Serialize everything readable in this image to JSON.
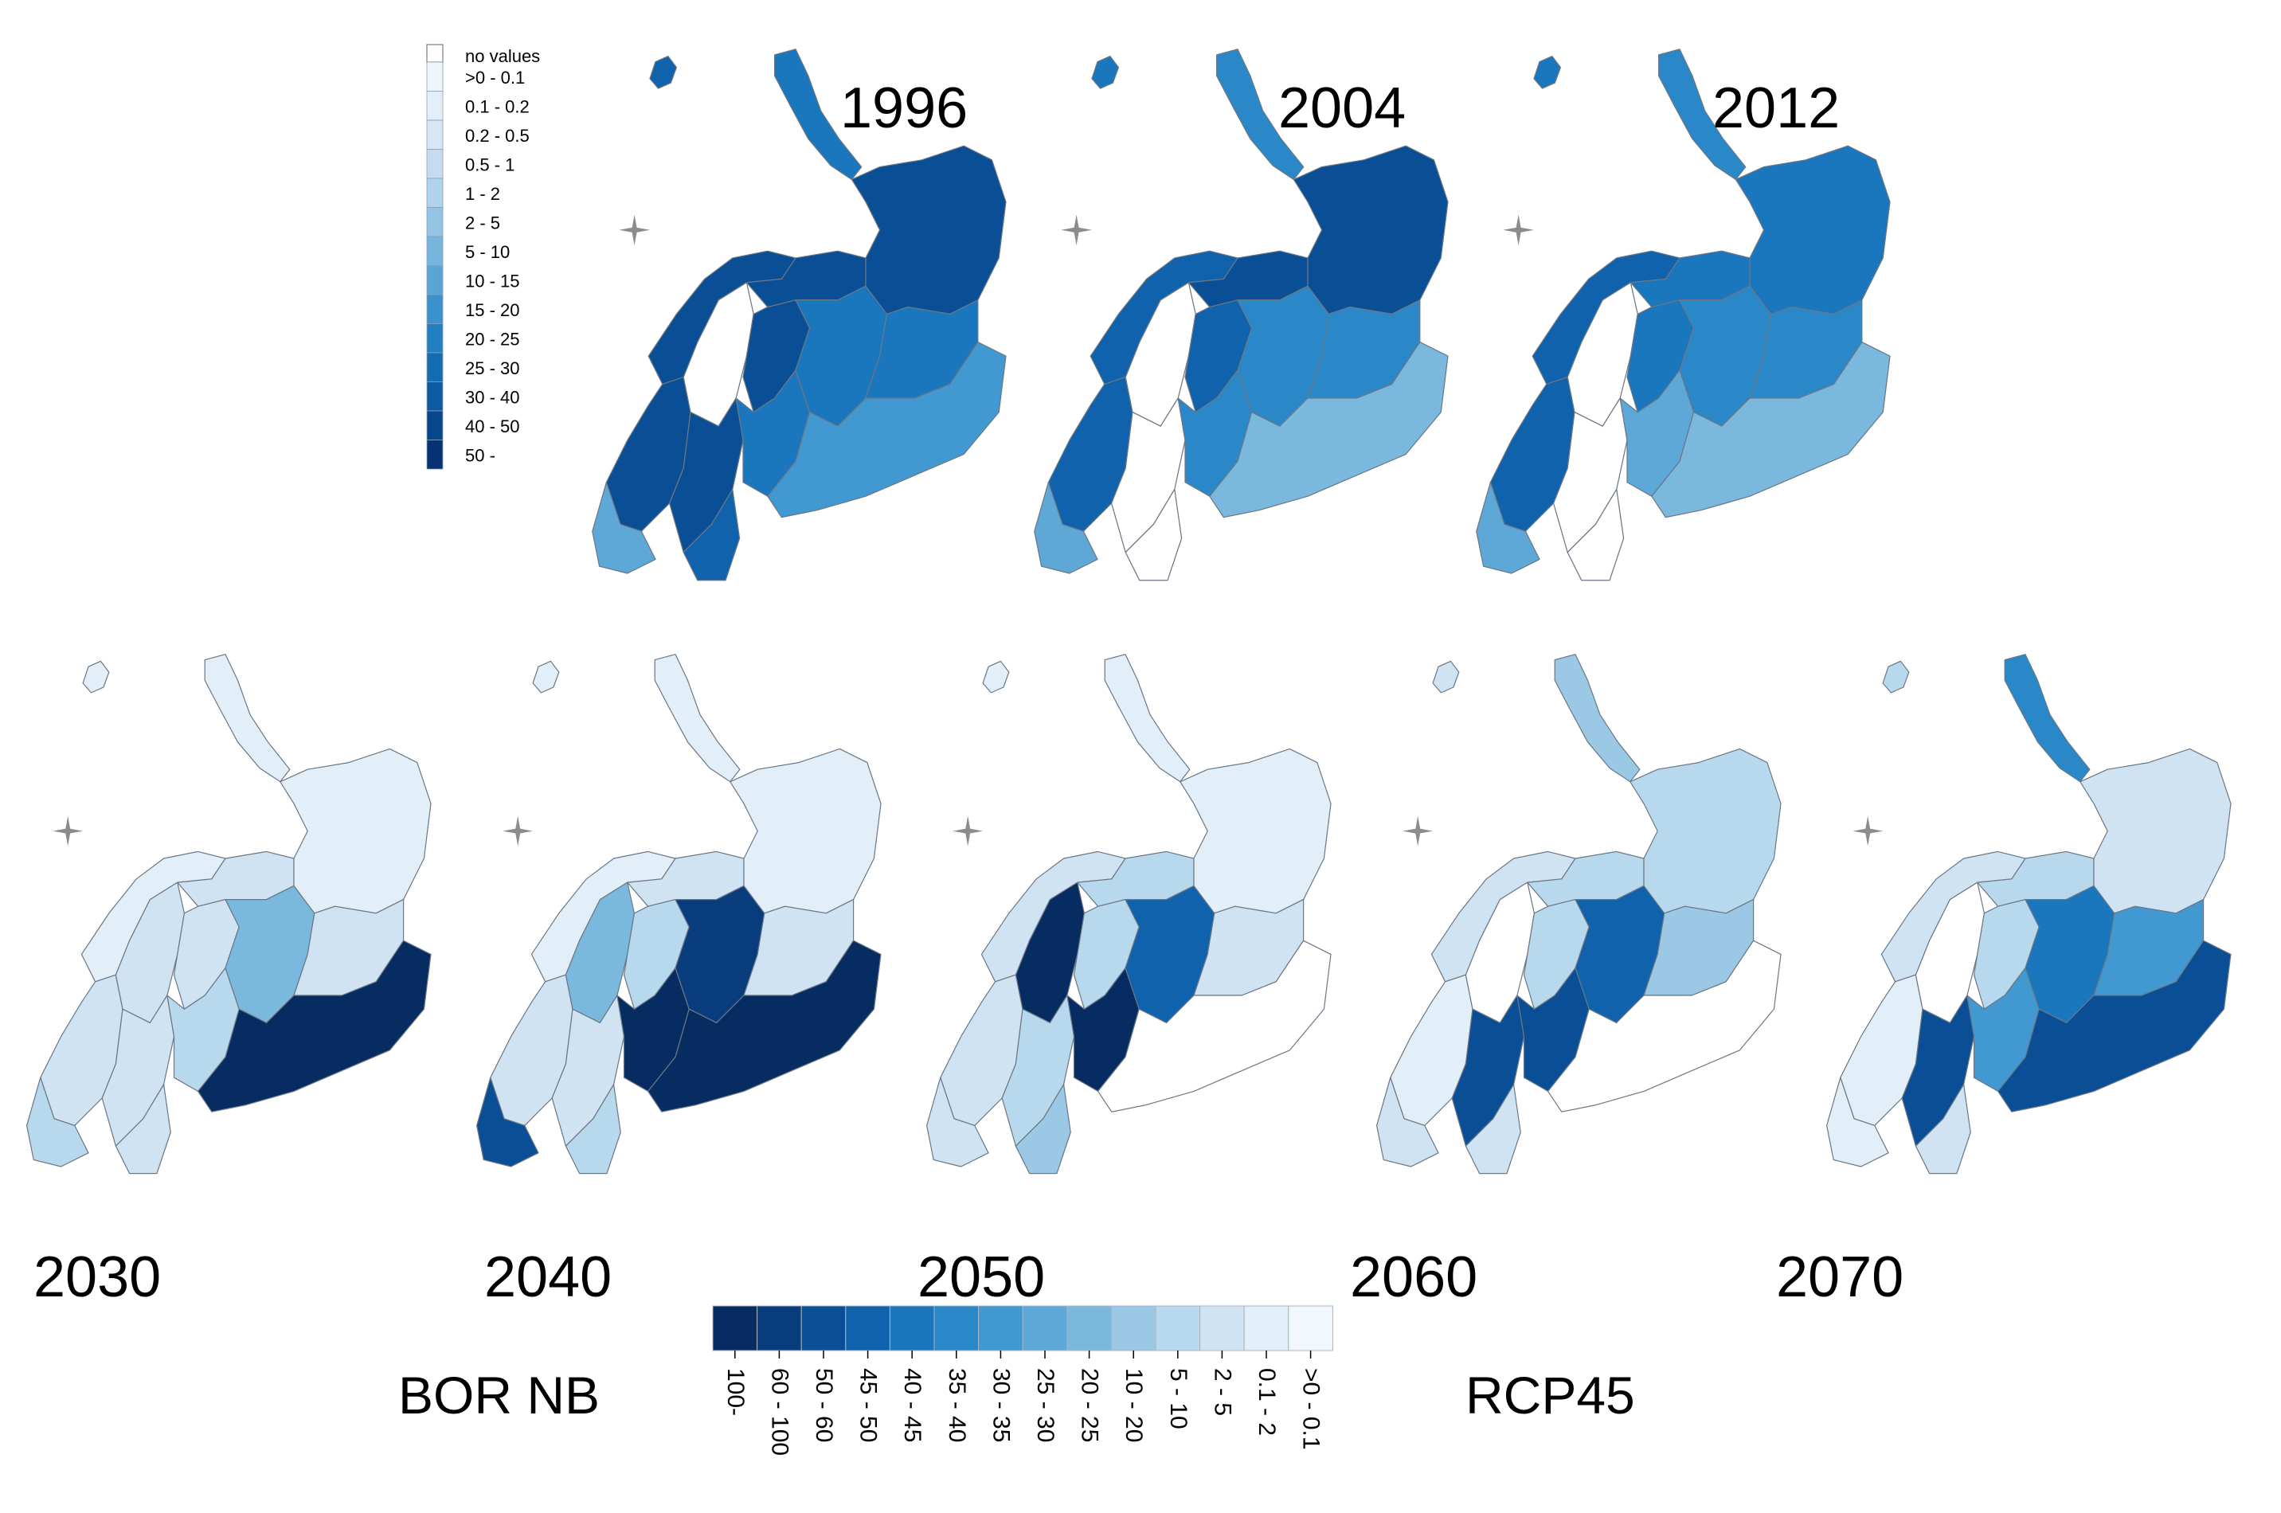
{
  "top_legend": {
    "title": "no values",
    "classes": [
      {
        "label": ">0 - 0.1",
        "color": "#eef5fc"
      },
      {
        "label": "0.1 - 0.2",
        "color": "#e3eef9"
      },
      {
        "label": "0.2 - 0.5",
        "color": "#d6e6f4"
      },
      {
        "label": "0.5 - 1",
        "color": "#c6dbef"
      },
      {
        "label": "1 - 2",
        "color": "#b0d2ea"
      },
      {
        "label": "2 - 5",
        "color": "#94c4e4"
      },
      {
        "label": "5 - 10",
        "color": "#78b5dd"
      },
      {
        "label": "10 - 15",
        "color": "#5aa5d6"
      },
      {
        "label": "15 - 20",
        "color": "#3b92cd"
      },
      {
        "label": "20 - 25",
        "color": "#2280c2"
      },
      {
        "label": "25 - 30",
        "color": "#146db3"
      },
      {
        "label": "30 - 40",
        "color": "#0d5aa0"
      },
      {
        "label": "40 - 50",
        "color": "#08468a"
      },
      {
        "label": "50 -",
        "color": "#063272"
      }
    ]
  },
  "bottom_legend": {
    "classes": [
      {
        "label": "100-",
        "color": "#062c61"
      },
      {
        "label": "60 - 100",
        "color": "#083c7c"
      },
      {
        "label": "50 - 60",
        "color": "#0a4e95"
      },
      {
        "label": "45 - 50",
        "color": "#0f62ab"
      },
      {
        "label": "40 - 45",
        "color": "#1a76bd"
      },
      {
        "label": "35 - 40",
        "color": "#2a88c8"
      },
      {
        "label": "30 - 35",
        "color": "#4298d0"
      },
      {
        "label": "25 - 30",
        "color": "#5ea8d7"
      },
      {
        "label": "20 - 25",
        "color": "#7ab8de"
      },
      {
        "label": "10 - 20",
        "color": "#9ac8e5"
      },
      {
        "label": "5 - 10",
        "color": "#b8d8ee"
      },
      {
        "label": "2 - 5",
        "color": "#cfe3f3"
      },
      {
        "label": "0.1 - 2",
        "color": "#e2eef8"
      },
      {
        "label": ">0 - 0.1",
        "color": "#f1f7fc"
      }
    ]
  },
  "maps": [
    {
      "year": "1996",
      "fills": {
        "svalbard": 4,
        "novaya": 5,
        "norway_n": 3,
        "norway_s": 3,
        "norway_sw": 8,
        "sweden_n": 0,
        "sweden_s": 3,
        "sweden_se": 4,
        "finland_n": 3,
        "finland_s": 5,
        "kola": 3,
        "karelia": 5,
        "russia_ne": 3,
        "russia_c": 5,
        "russia_se": 7
      }
    },
    {
      "year": "2004",
      "fills": {
        "svalbard": 5,
        "novaya": 6,
        "norway_n": 4,
        "norway_s": 4,
        "norway_sw": 8,
        "sweden_n": 0,
        "sweden_s": 0,
        "sweden_se": 0,
        "finland_n": 4,
        "finland_s": 6,
        "kola": 3,
        "karelia": 6,
        "russia_ne": 3,
        "russia_c": 6,
        "russia_se": 9
      }
    },
    {
      "year": "2012",
      "fills": {
        "svalbard": 5,
        "novaya": 6,
        "norway_n": 4,
        "norway_s": 4,
        "norway_sw": 8,
        "sweden_n": 0,
        "sweden_s": 0,
        "sweden_se": 0,
        "finland_n": 5,
        "finland_s": 8,
        "kola": 5,
        "karelia": 6,
        "russia_ne": 5,
        "russia_c": 6,
        "russia_se": 9
      }
    },
    {
      "year": "2030",
      "fills": {
        "svalbard": 13,
        "novaya": 13,
        "norway_n": 13,
        "norway_s": 12,
        "norway_sw": 11,
        "sweden_n": 12,
        "sweden_s": 12,
        "sweden_se": 12,
        "finland_n": 12,
        "finland_s": 11,
        "kola": 12,
        "karelia": 9,
        "russia_ne": 13,
        "russia_c": 12,
        "russia_se": 1
      }
    },
    {
      "year": "2040",
      "fills": {
        "svalbard": 13,
        "novaya": 13,
        "norway_n": 13,
        "norway_s": 12,
        "norway_sw": 3,
        "sweden_n": 9,
        "sweden_s": 12,
        "sweden_se": 11,
        "finland_n": 11,
        "finland_s": 1,
        "kola": 12,
        "karelia": 2,
        "russia_ne": 13,
        "russia_c": 12,
        "russia_se": 1
      }
    },
    {
      "year": "2050",
      "fills": {
        "svalbard": 13,
        "novaya": 13,
        "norway_n": 12,
        "norway_s": 12,
        "norway_sw": 12,
        "sweden_n": 1,
        "sweden_s": 11,
        "sweden_se": 10,
        "finland_n": 11,
        "finland_s": 1,
        "kola": 11,
        "karelia": 4,
        "russia_ne": 13,
        "russia_c": 12,
        "russia_se": 0
      }
    },
    {
      "year": "2060",
      "fills": {
        "svalbard": 12,
        "novaya": 10,
        "norway_n": 12,
        "norway_s": 13,
        "norway_sw": 12,
        "sweden_n": 0,
        "sweden_s": 3,
        "sweden_se": 12,
        "finland_n": 11,
        "finland_s": 3,
        "kola": 11,
        "karelia": 4,
        "russia_ne": 11,
        "russia_c": 10,
        "russia_se": 0
      }
    },
    {
      "year": "2070",
      "fills": {
        "svalbard": 11,
        "novaya": 6,
        "norway_n": 12,
        "norway_s": 13,
        "norway_sw": 13,
        "sweden_n": 0,
        "sweden_s": 3,
        "sweden_se": 12,
        "finland_n": 11,
        "finland_s": 7,
        "kola": 11,
        "karelia": 5,
        "russia_ne": 12,
        "russia_c": 7,
        "russia_se": 3
      }
    }
  ],
  "labels": {
    "species": "BOR NB",
    "scenario": "RCP45"
  }
}
